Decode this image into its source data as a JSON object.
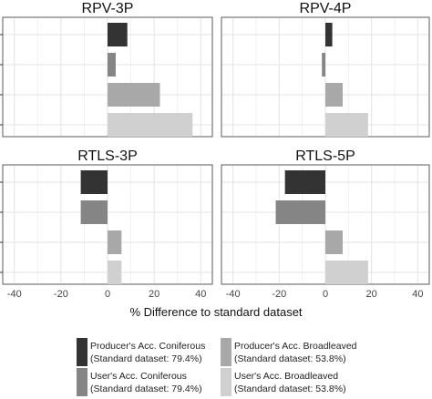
{
  "chart_data": {
    "type": "bar",
    "orientation": "horizontal",
    "xlabel": "% Difference to standard dataset",
    "xlim": [
      -45,
      45
    ],
    "xticks": [
      -40,
      -20,
      0,
      20,
      40
    ],
    "grid": true,
    "legend_position": "bottom",
    "series": [
      {
        "name": "Producer's Acc. Coniferous",
        "note": "(Standard dataset: 79.4%)",
        "color": "#333333"
      },
      {
        "name": "User's Acc. Coniferous",
        "note": "(Standard dataset: 79.4%)",
        "color": "#858585"
      },
      {
        "name": "Producer's Acc. Broadleaved",
        "note": "(Standard dataset: 53.8%)",
        "color": "#a8a8a8"
      },
      {
        "name": "User's Acc. Broadleaved",
        "note": "(Standard dataset: 53.8%)",
        "color": "#d0d0d0"
      }
    ],
    "panels": [
      {
        "title": "RPV-3P",
        "values": [
          8.5,
          3.5,
          22.5,
          36.5
        ]
      },
      {
        "title": "RPV-4P",
        "values": [
          3.0,
          -1.5,
          7.5,
          18.5
        ]
      },
      {
        "title": "RTLS-3P",
        "values": [
          -11.5,
          -11.5,
          6.0,
          6.0
        ]
      },
      {
        "title": "RTLS-5P",
        "values": [
          -17.5,
          -21.5,
          7.5,
          18.5
        ]
      }
    ]
  }
}
